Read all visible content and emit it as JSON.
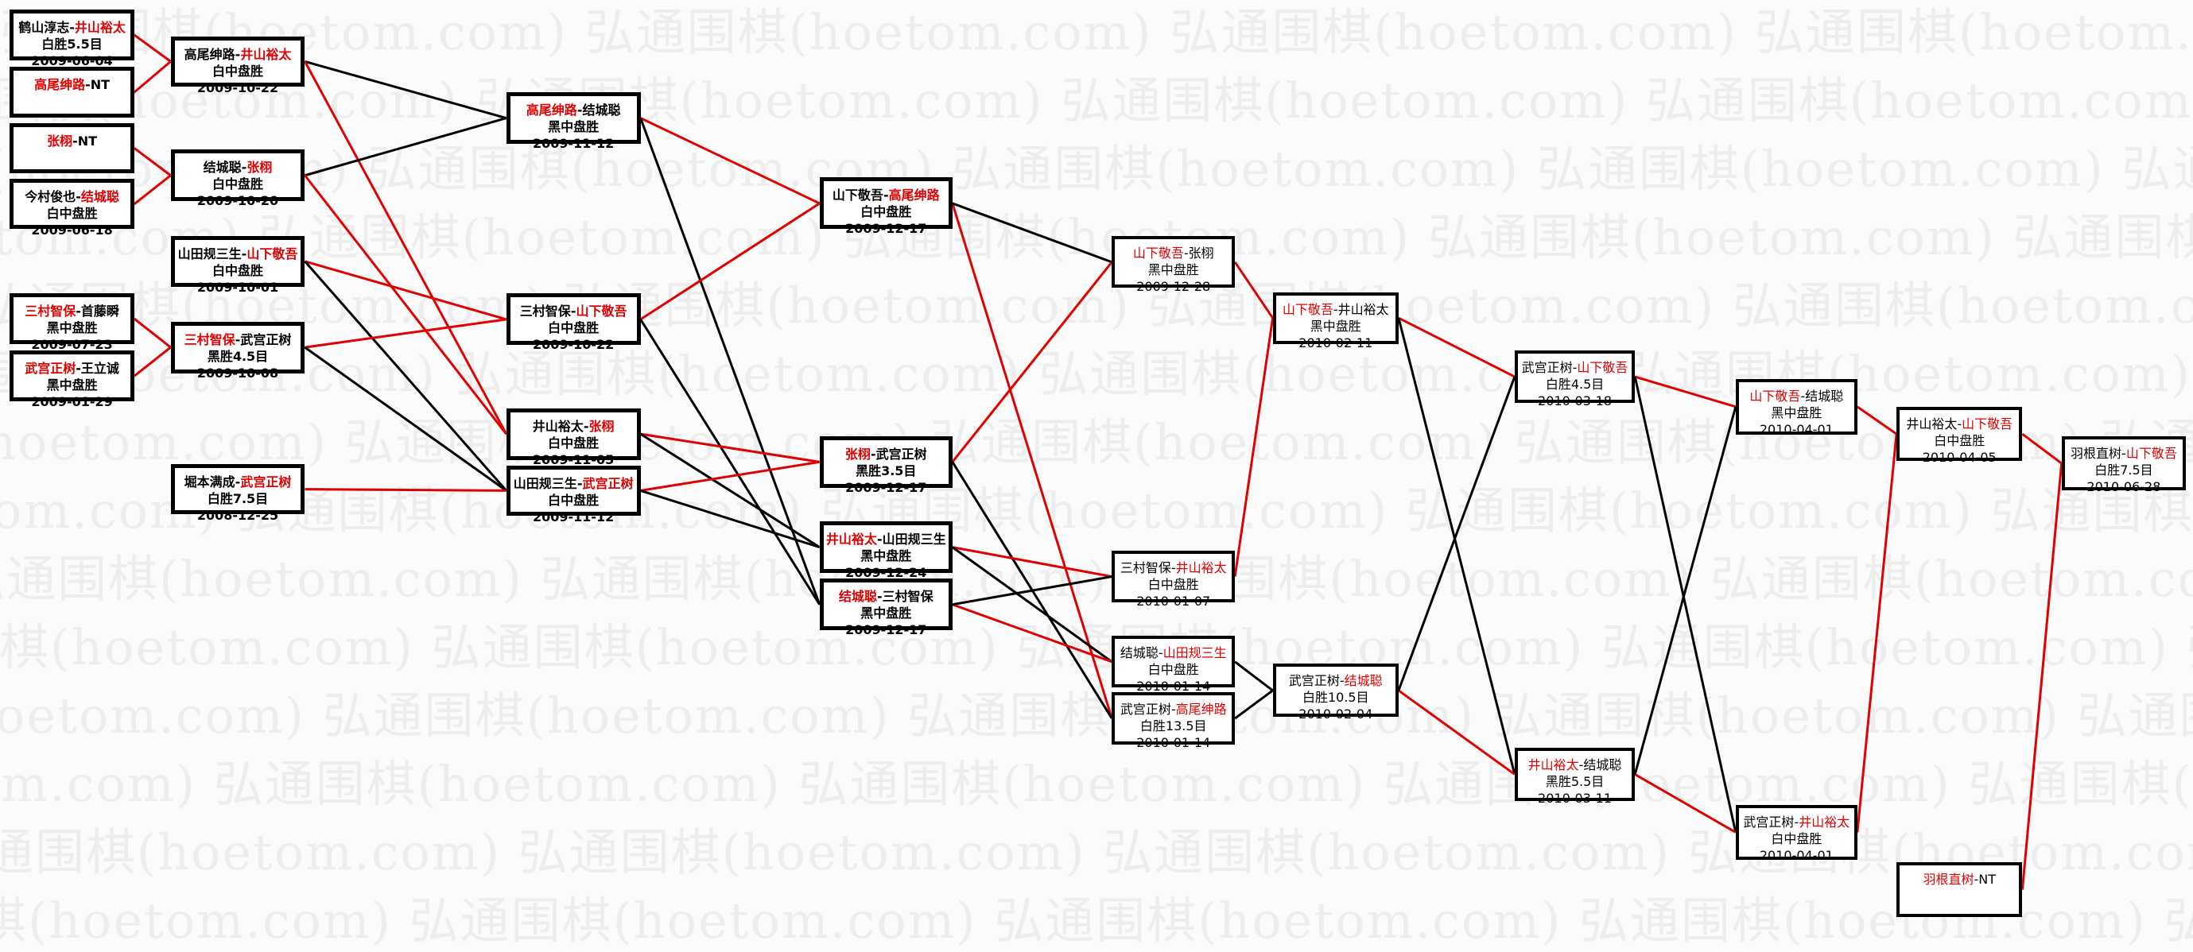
{
  "watermark": "弘通围棋(hoetom.com)",
  "separator": "-",
  "colors": {
    "winner": "#e00000",
    "loser": "#000000",
    "win_link": "#e00000",
    "lose_link": "#000000"
  },
  "matches": [
    {
      "id": "A1",
      "left": "鹤山淳志",
      "right": "井山裕太",
      "winner": "right",
      "result": "白胜5.5目",
      "date": "2009-06-04"
    },
    {
      "id": "A2",
      "left": "高尾绅路",
      "right": "NT",
      "winner": "left",
      "result": "",
      "date": ""
    },
    {
      "id": "A3",
      "left": "张栩",
      "right": "NT",
      "winner": "left",
      "result": "",
      "date": ""
    },
    {
      "id": "A4",
      "left": "今村俊也",
      "right": "结城聪",
      "winner": "right",
      "result": "白中盘胜",
      "date": "2009-06-18"
    },
    {
      "id": "A5",
      "left": "三村智保",
      "right": "首藤瞬",
      "winner": "left",
      "result": "黑中盘胜",
      "date": "2009-07-23"
    },
    {
      "id": "A6",
      "left": "武宫正树",
      "right": "王立诚",
      "winner": "left",
      "result": "黑中盘胜",
      "date": "2009-01-29"
    },
    {
      "id": "B1",
      "left": "高尾绅路",
      "right": "井山裕太",
      "winner": "right",
      "result": "白中盘胜",
      "date": "2009-10-22"
    },
    {
      "id": "B2",
      "left": "结城聪",
      "right": "张栩",
      "winner": "right",
      "result": "白中盘胜",
      "date": "2009-10-20"
    },
    {
      "id": "B3",
      "left": "山田规三生",
      "right": "山下敬吾",
      "winner": "right",
      "result": "白中盘胜",
      "date": "2009-10-01"
    },
    {
      "id": "B4",
      "left": "三村智保",
      "right": "武宫正树",
      "winner": "left",
      "result": "黑胜4.5目",
      "date": "2009-10-08"
    },
    {
      "id": "B5",
      "left": "堀本满成",
      "right": "武宫正树",
      "winner": "right",
      "result": "白胜7.5目",
      "date": "2008-12-25"
    },
    {
      "id": "C1",
      "left": "高尾绅路",
      "right": "结城聪",
      "winner": "left",
      "result": "黑中盘胜",
      "date": "2009-11-12"
    },
    {
      "id": "C2",
      "left": "三村智保",
      "right": "山下敬吾",
      "winner": "right",
      "result": "白中盘胜",
      "date": "2009-10-22"
    },
    {
      "id": "C3",
      "left": "井山裕太",
      "right": "张栩",
      "winner": "right",
      "result": "白中盘胜",
      "date": "2009-11-05"
    },
    {
      "id": "C4",
      "left": "山田规三生",
      "right": "武宫正树",
      "winner": "right",
      "result": "白中盘胜",
      "date": "2009-11-12"
    },
    {
      "id": "D1",
      "left": "山下敬吾",
      "right": "高尾绅路",
      "winner": "right",
      "result": "白中盘胜",
      "date": "2009-12-17"
    },
    {
      "id": "D2",
      "left": "张栩",
      "right": "武宫正树",
      "winner": "left",
      "result": "黑胜3.5目",
      "date": "2009-12-17"
    },
    {
      "id": "D3",
      "left": "井山裕太",
      "right": "山田规三生",
      "winner": "left",
      "result": "黑中盘胜",
      "date": "2009-12-24"
    },
    {
      "id": "D4",
      "left": "结城聪",
      "right": "三村智保",
      "winner": "left",
      "result": "黑中盘胜",
      "date": "2009-12-17"
    },
    {
      "id": "E1",
      "left": "山下敬吾",
      "right": "张栩",
      "winner": "left",
      "result": "黑中盘胜",
      "date": "2009-12-28"
    },
    {
      "id": "E2",
      "left": "三村智保",
      "right": "井山裕太",
      "winner": "right",
      "result": "白中盘胜",
      "date": "2010-01-07"
    },
    {
      "id": "E3",
      "left": "结城聪",
      "right": "山田规三生",
      "winner": "right",
      "result": "白中盘胜",
      "date": "2010-01-14"
    },
    {
      "id": "E4",
      "left": "武宫正树",
      "right": "高尾绅路",
      "winner": "right",
      "result": "白胜13.5目",
      "date": "2010-01-14"
    },
    {
      "id": "F1",
      "left": "山下敬吾",
      "right": "井山裕太",
      "winner": "left",
      "result": "黑中盘胜",
      "date": "2010-02-11"
    },
    {
      "id": "F2",
      "left": "武宫正树",
      "right": "结城聪",
      "winner": "right",
      "result": "白胜10.5目",
      "date": "2010-02-04"
    },
    {
      "id": "G1",
      "left": "武宫正树",
      "right": "山下敬吾",
      "winner": "right",
      "result": "白胜4.5目",
      "date": "2010-03-18"
    },
    {
      "id": "G2",
      "left": "井山裕太",
      "right": "结城聪",
      "winner": "left",
      "result": "黑胜5.5目",
      "date": "2010-03-11"
    },
    {
      "id": "H1",
      "left": "山下敬吾",
      "right": "结城聪",
      "winner": "left",
      "result": "黑中盘胜",
      "date": "2010-04-01"
    },
    {
      "id": "H2",
      "left": "武宫正树",
      "right": "井山裕太",
      "winner": "right",
      "result": "白中盘胜",
      "date": "2010-04-01"
    },
    {
      "id": "I1",
      "left": "井山裕太",
      "right": "山下敬吾",
      "winner": "right",
      "result": "白中盘胜",
      "date": "2010-04-05"
    },
    {
      "id": "I2",
      "left": "羽根直树",
      "right": "NT",
      "winner": "left",
      "result": "",
      "date": ""
    },
    {
      "id": "J1",
      "left": "羽根直树",
      "right": "山下敬吾",
      "winner": "right",
      "result": "白胜7.5目",
      "date": "2010-06-28"
    }
  ],
  "edges": [
    [
      "A1",
      "B1",
      "win"
    ],
    [
      "A2",
      "B1",
      "win"
    ],
    [
      "A3",
      "B2",
      "win"
    ],
    [
      "A4",
      "B2",
      "win"
    ],
    [
      "A5",
      "B4",
      "win"
    ],
    [
      "A6",
      "B4",
      "win"
    ],
    [
      "B1",
      "C1",
      "lose"
    ],
    [
      "B1",
      "C3",
      "win"
    ],
    [
      "B2",
      "C1",
      "lose"
    ],
    [
      "B2",
      "C3",
      "win"
    ],
    [
      "B3",
      "C2",
      "win"
    ],
    [
      "B3",
      "C4",
      "lose"
    ],
    [
      "B4",
      "C2",
      "win"
    ],
    [
      "B4",
      "C4",
      "lose"
    ],
    [
      "B5",
      "C4",
      "win"
    ],
    [
      "C1",
      "D1",
      "win"
    ],
    [
      "C1",
      "D4",
      "lose"
    ],
    [
      "C2",
      "D1",
      "win"
    ],
    [
      "C2",
      "D4",
      "lose"
    ],
    [
      "C3",
      "D2",
      "win"
    ],
    [
      "C3",
      "D3",
      "lose"
    ],
    [
      "C4",
      "D2",
      "win"
    ],
    [
      "C4",
      "D3",
      "lose"
    ],
    [
      "D1",
      "E4",
      "win"
    ],
    [
      "D1",
      "E1",
      "lose"
    ],
    [
      "D2",
      "E1",
      "win"
    ],
    [
      "D2",
      "E4",
      "lose"
    ],
    [
      "D3",
      "E2",
      "win"
    ],
    [
      "D3",
      "E3",
      "lose"
    ],
    [
      "D4",
      "E3",
      "win"
    ],
    [
      "D4",
      "E2",
      "lose"
    ],
    [
      "E1",
      "F1",
      "win"
    ],
    [
      "E2",
      "F1",
      "win"
    ],
    [
      "E3",
      "F2",
      "lose"
    ],
    [
      "E4",
      "F2",
      "lose"
    ],
    [
      "F1",
      "G1",
      "win"
    ],
    [
      "F1",
      "G2",
      "lose"
    ],
    [
      "F2",
      "G2",
      "win"
    ],
    [
      "F2",
      "G1",
      "lose"
    ],
    [
      "G1",
      "H1",
      "win"
    ],
    [
      "G1",
      "H2",
      "lose"
    ],
    [
      "G2",
      "H2",
      "win"
    ],
    [
      "G2",
      "H1",
      "lose"
    ],
    [
      "H1",
      "I1",
      "win"
    ],
    [
      "H2",
      "I1",
      "win"
    ],
    [
      "I1",
      "J1",
      "win"
    ],
    [
      "I2",
      "J1",
      "win"
    ]
  ]
}
